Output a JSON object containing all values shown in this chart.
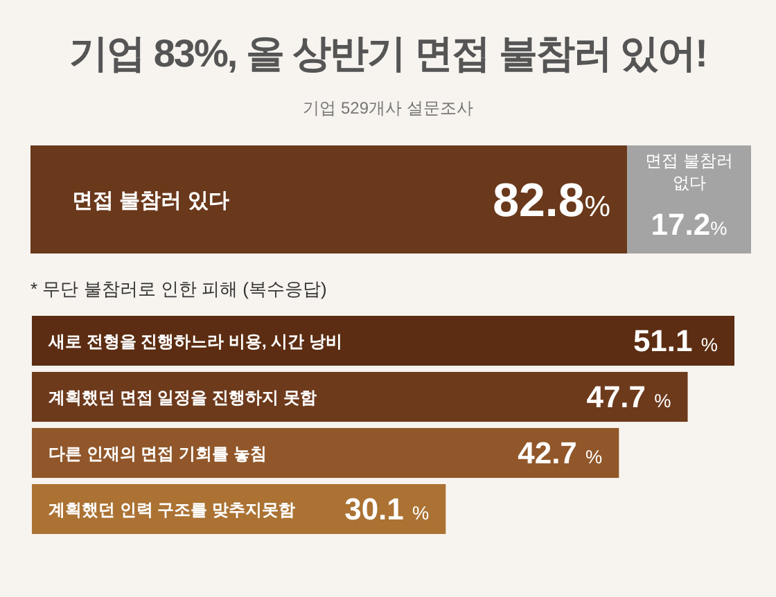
{
  "chart_data": [
    {
      "type": "bar",
      "orientation": "horizontal",
      "stacked": true,
      "title": "기업 83%, 올 상반기 면접 불참러 있어!",
      "subtitle": "기업 529개사 설문조사",
      "categories": [
        null
      ],
      "series": [
        {
          "name": "면접 불참러 있다",
          "color": "#6a381b",
          "values": [
            82.8
          ],
          "value_labels": [
            "82.8%"
          ]
        },
        {
          "name": "면접 불참러 없다",
          "color": "#a4a4a4",
          "values": [
            17.2
          ],
          "value_labels": [
            "17.2%"
          ]
        }
      ],
      "tick_labels": false
    },
    {
      "type": "bar",
      "orientation": "horizontal",
      "title": "* 무단 불참러로 인한 피해 (복수응답)",
      "categories": [
        "새로 전형을 진행하느라 비용, 시간 낭비",
        "계획했던 면접 일정을 진행하지 못함",
        "다른 인재의 면접 기회를 놓침",
        "계획했던 인력 구조를 맞추지못함"
      ],
      "values": [
        51.1,
        47.7,
        42.7,
        30.1
      ],
      "colors": [
        "#5c2d12",
        "#6d3a1c",
        "#91572a",
        "#ab7233"
      ],
      "value_labels": [
        "51.1 %",
        "47.7 %",
        "42.7 %",
        "30.1 %"
      ],
      "tick_labels": "y"
    }
  ]
}
